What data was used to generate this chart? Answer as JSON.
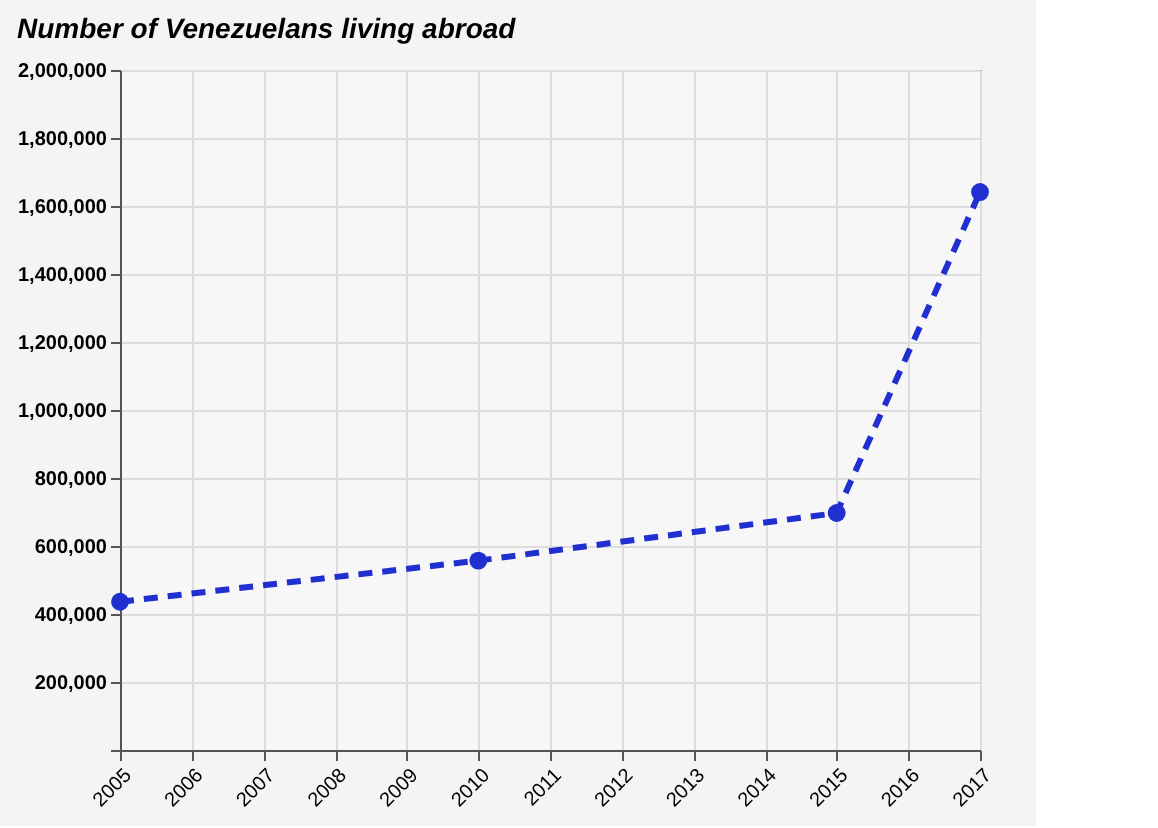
{
  "chart_data": {
    "type": "line",
    "title": "Number of Venezuelans living abroad",
    "x": [
      2005,
      2010,
      2015,
      2017
    ],
    "series": [
      {
        "color": "#1f2fd0",
        "values": [
          436000,
          557000,
          697000,
          1641000
        ]
      }
    ],
    "xlim": [
      2005,
      2017
    ],
    "xticks": [
      2005,
      2006,
      2007,
      2008,
      2009,
      2010,
      2011,
      2012,
      2013,
      2014,
      2015,
      2016,
      2017
    ],
    "ylim": [
      0,
      2000000
    ],
    "yticks": [
      {
        "value": 0,
        "label": null
      },
      {
        "value": 200000,
        "label": "200,000"
      },
      {
        "value": 400000,
        "label": "400,000"
      },
      {
        "value": 600000,
        "label": "600,000"
      },
      {
        "value": 800000,
        "label": "800,000"
      },
      {
        "value": 1000000,
        "label": "1,000,000"
      },
      {
        "value": 1200000,
        "label": "1,200,000"
      },
      {
        "value": 1400000,
        "label": "1,400,000"
      },
      {
        "value": 1600000,
        "label": "1,600,000"
      },
      {
        "value": 1800000,
        "label": "1,800,000"
      },
      {
        "value": 2000000,
        "label": "2,000,000"
      }
    ],
    "grid": true,
    "marker": "circle",
    "line_style": "dashed"
  }
}
